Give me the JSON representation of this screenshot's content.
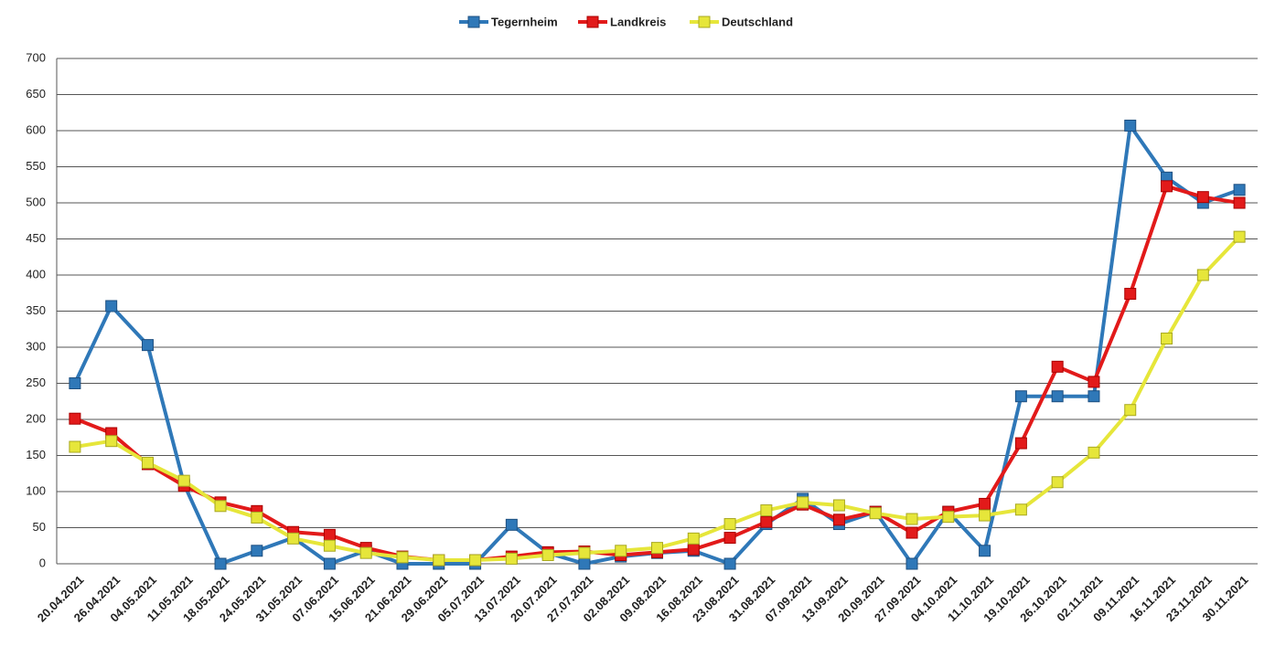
{
  "chart_data": {
    "type": "line",
    "categories": [
      "20.04.2021",
      "26.04.2021",
      "04.05.2021",
      "11.05.2021",
      "18.05.2021",
      "24.05.2021",
      "31.05.2021",
      "07.06.2021",
      "15.06.2021",
      "21.06.2021",
      "29.06.2021",
      "05.07.2021",
      "13.07.2021",
      "20.07.2021",
      "27.07.2021",
      "02.08.2021",
      "09.08.2021",
      "16.08.2021",
      "23.08.2021",
      "31.08.2021",
      "07.09.2021",
      "13.09.2021",
      "20.09.2021",
      "27.09.2021",
      "04.10.2021",
      "11.10.2021",
      "19.10.2021",
      "26.10.2021",
      "02.11.2021",
      "09.11.2021",
      "16.11.2021",
      "23.11.2021",
      "30.11.2021"
    ],
    "series": [
      {
        "name": "Tegernheim",
        "color": "#2f78b8",
        "values": [
          250,
          357,
          303,
          110,
          0,
          18,
          36,
          0,
          18,
          0,
          0,
          0,
          54,
          15,
          0,
          10,
          15,
          18,
          0,
          55,
          90,
          55,
          72,
          0,
          72,
          18,
          232,
          232,
          232,
          607,
          535,
          500,
          518
        ]
      },
      {
        "name": "Landkreis",
        "color": "#e21a1a",
        "values": [
          201,
          181,
          138,
          108,
          85,
          73,
          44,
          40,
          22,
          10,
          5,
          5,
          10,
          16,
          17,
          12,
          16,
          20,
          36,
          58,
          82,
          61,
          72,
          43,
          72,
          83,
          167,
          273,
          252,
          374,
          523,
          508,
          500
        ]
      },
      {
        "name": "Deutschland",
        "color": "#e6e63a",
        "values": [
          162,
          170,
          140,
          115,
          80,
          64,
          35,
          25,
          15,
          9,
          5,
          5,
          7,
          12,
          15,
          18,
          22,
          35,
          55,
          74,
          85,
          81,
          70,
          62,
          65,
          67,
          75,
          113,
          154,
          213,
          312,
          400,
          453
        ]
      }
    ],
    "ylim": [
      0,
      700
    ],
    "yticks": [
      0,
      50,
      100,
      150,
      200,
      250,
      300,
      350,
      400,
      450,
      500,
      550,
      600,
      650,
      700
    ],
    "grid": true,
    "legend": "top"
  }
}
